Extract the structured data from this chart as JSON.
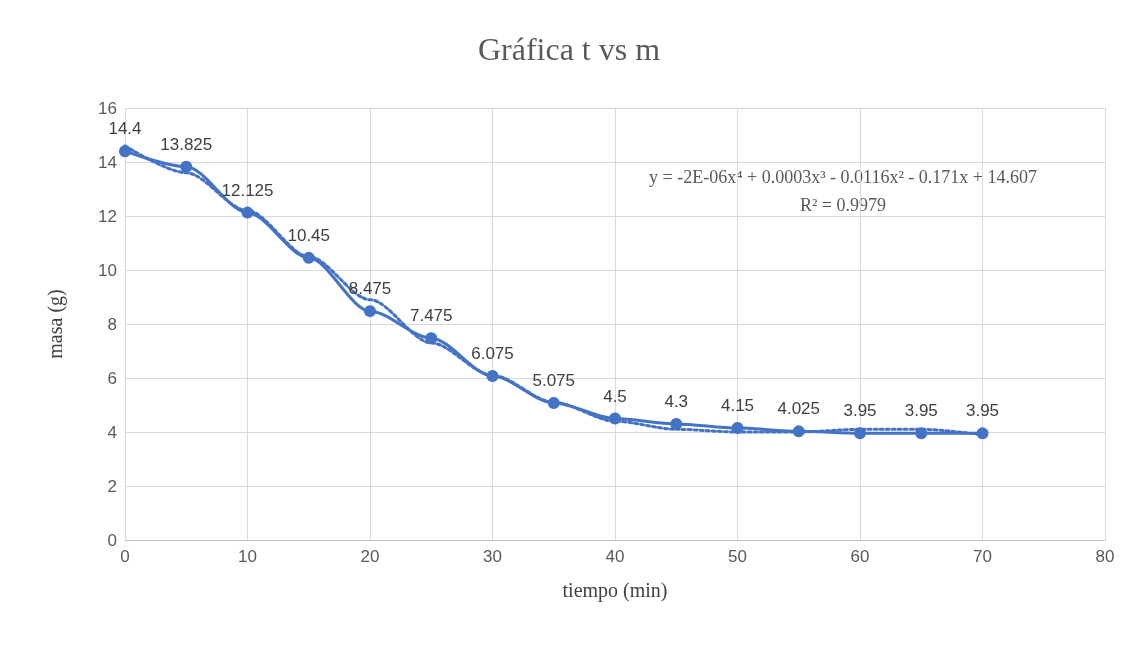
{
  "chart_data": {
    "type": "line",
    "title": "Gráfica t vs m",
    "xlabel": "tiempo (min)",
    "ylabel": "masa (g)",
    "x": [
      0,
      5,
      10,
      15,
      20,
      25,
      30,
      35,
      40,
      45,
      50,
      55,
      60,
      65,
      70
    ],
    "series": [
      {
        "color": "#4472c4",
        "values": [
          14.4,
          13.825,
          12.125,
          10.45,
          8.475,
          7.475,
          6.075,
          5.075,
          4.5,
          4.3,
          4.15,
          4.025,
          3.95,
          3.95,
          3.95
        ],
        "marker": "circle",
        "line_style": "solid",
        "data_labels": true
      },
      {
        "type": "line",
        "color": "#4472c4",
        "x": [
          0,
          5,
          10,
          15,
          20,
          25,
          30,
          35,
          40,
          45,
          50,
          55,
          60,
          65,
          70
        ],
        "values": [
          14.6,
          13.6,
          12.2,
          10.5,
          8.9,
          7.3,
          6.1,
          5.1,
          4.4,
          4.1,
          4.0,
          4.0,
          4.1,
          4.1,
          3.9
        ],
        "marker": "none",
        "line_style": "dotted"
      }
    ],
    "annotations": [
      "y = -2E-06x⁴ + 0.0003x³ - 0.0116x² - 0.171x + 14.607",
      "R² = 0.9979"
    ],
    "xlim": [
      0,
      80
    ],
    "xticks": [
      0,
      10,
      20,
      30,
      40,
      50,
      60,
      70,
      80
    ],
    "ylim": [
      0,
      16
    ],
    "yticks": [
      0,
      2,
      4,
      6,
      8,
      10,
      12,
      14,
      16
    ],
    "grid": true
  }
}
